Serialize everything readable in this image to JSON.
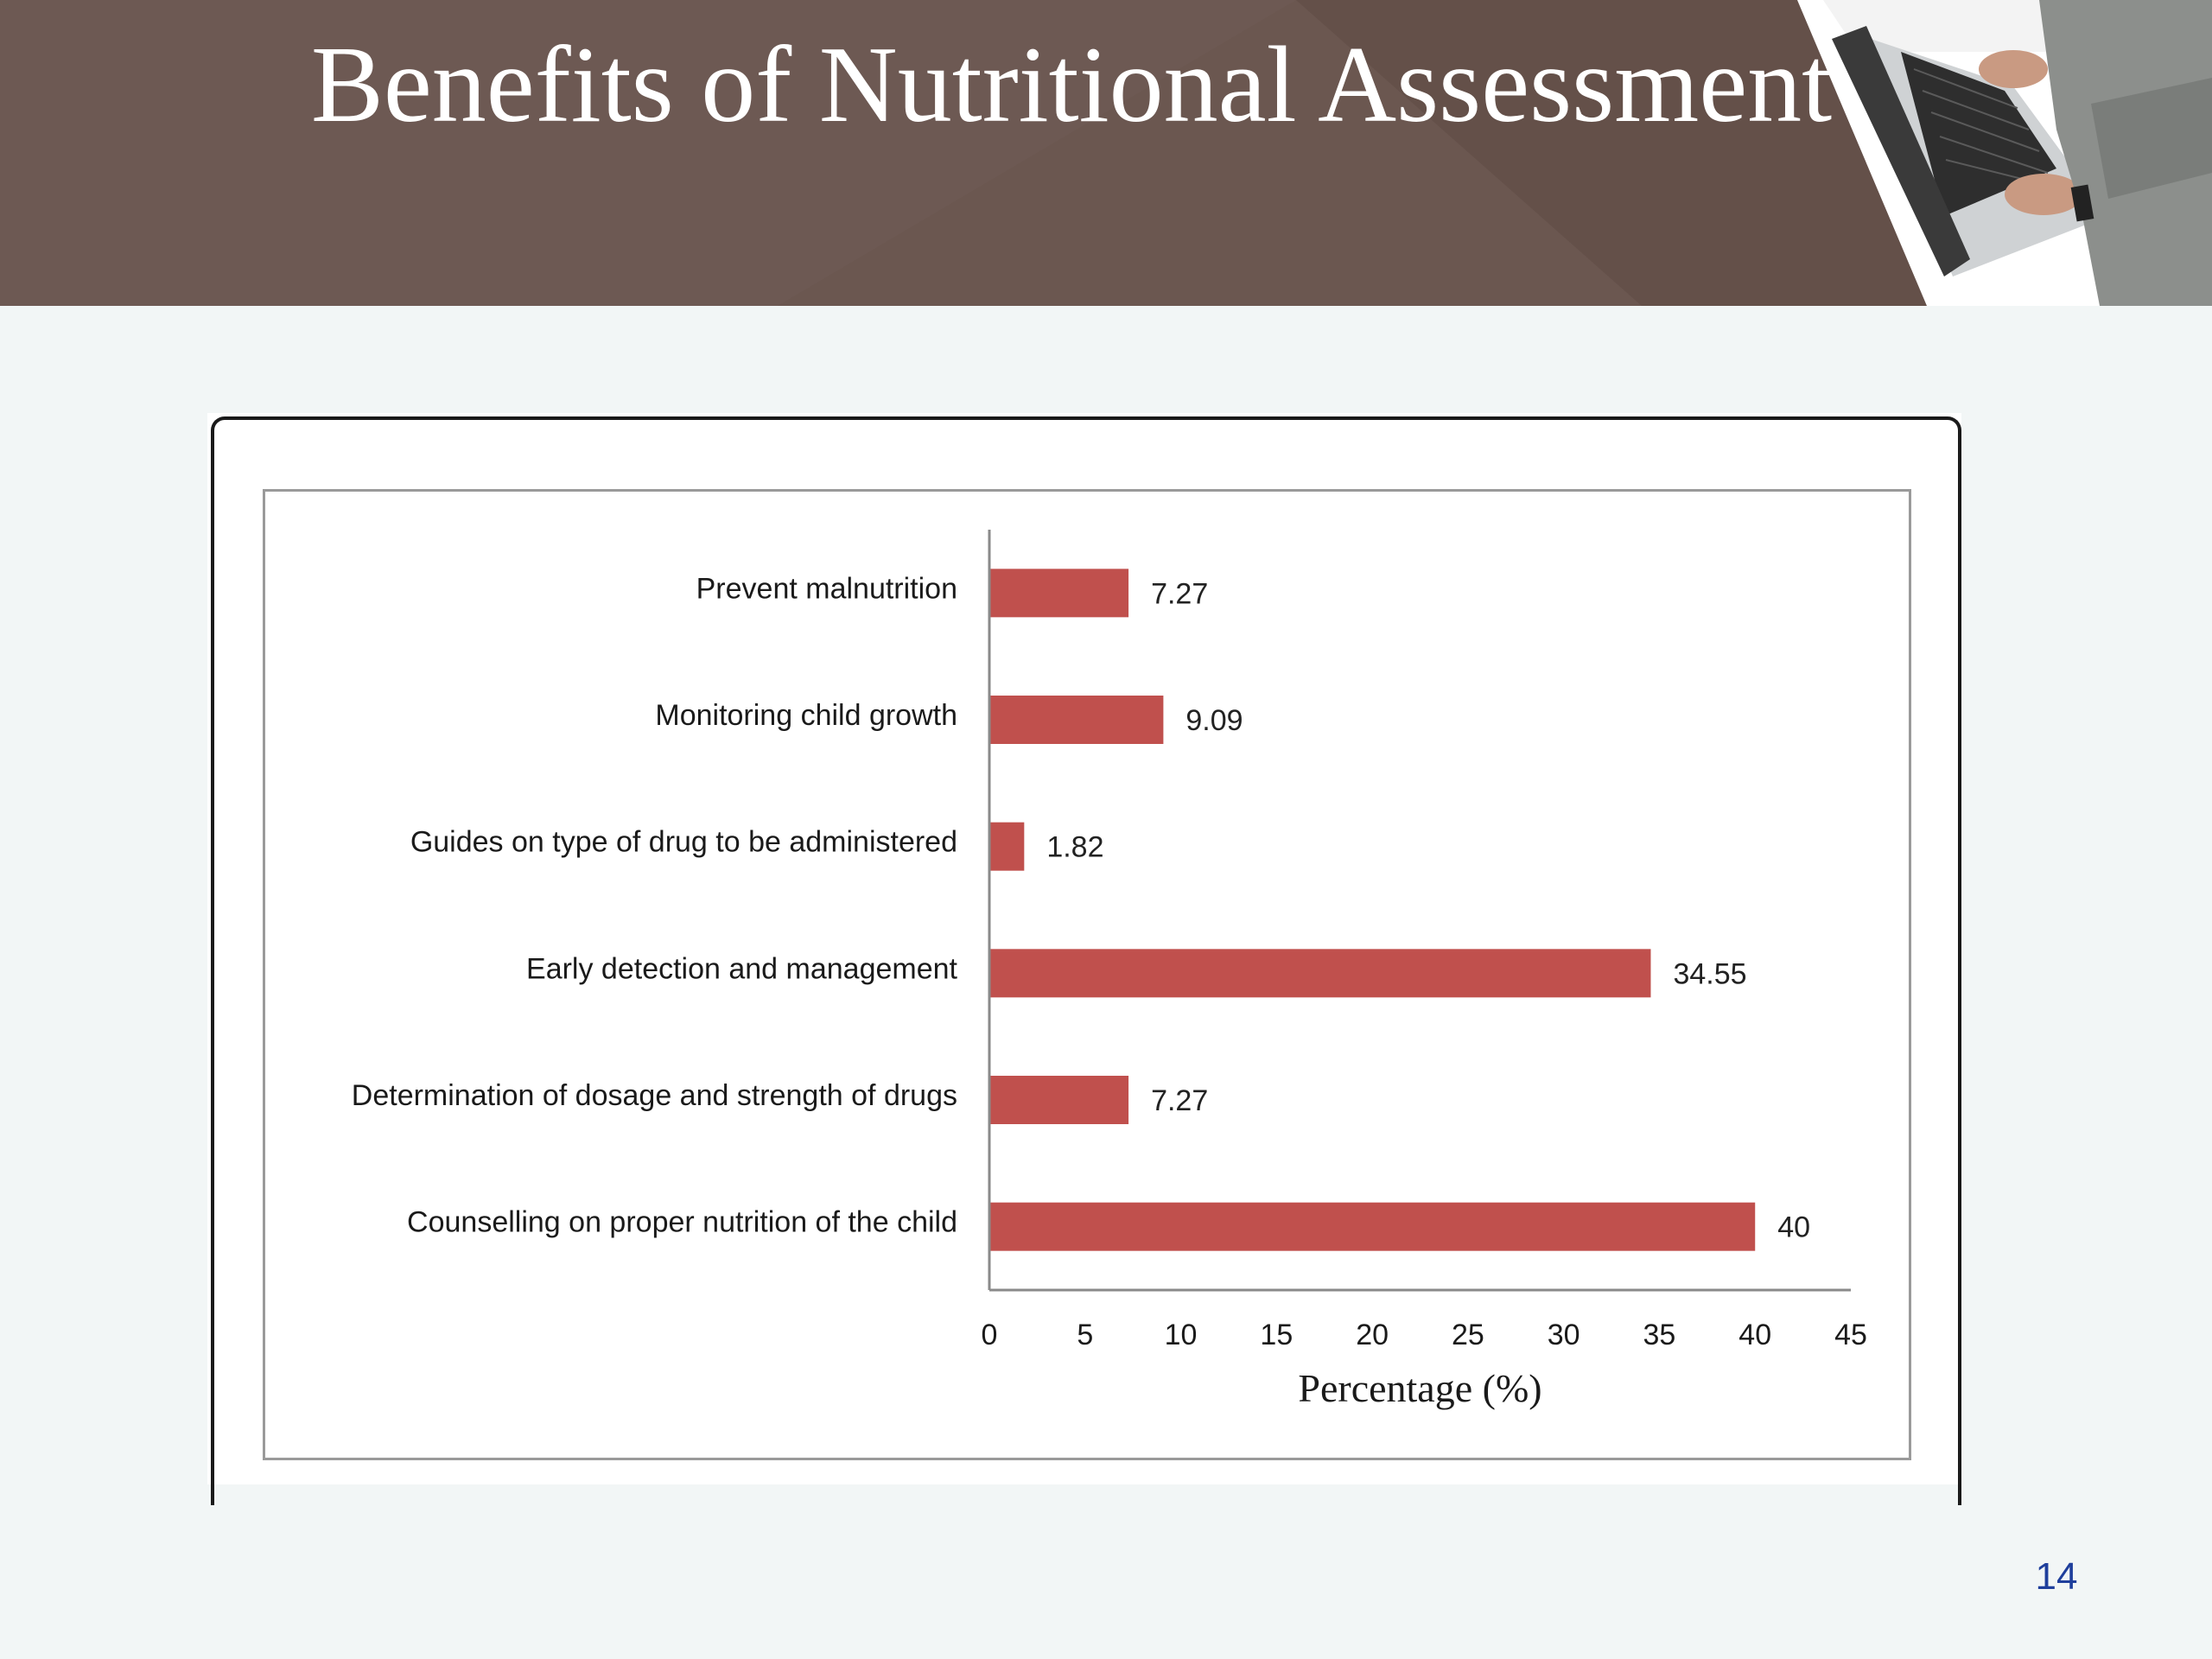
{
  "slide": {
    "title": "Benefits of Nutritional Assessment",
    "page_number": "14",
    "header_color": "#6b5750"
  },
  "chart_data": {
    "type": "bar",
    "orientation": "horizontal",
    "categories": [
      "Prevent malnutrition",
      "Monitoring child growth",
      "Guides on type of drug to be administered",
      "Early detection and management",
      "Determination of dosage and strength of drugs",
      "Counselling on proper nutrition of the child"
    ],
    "values": [
      7.27,
      9.09,
      1.82,
      34.55,
      7.27,
      40
    ],
    "value_labels": [
      "7.27",
      "9.09",
      "1.82",
      "34.55",
      "7.27",
      "40"
    ],
    "xlabel": "Percentage (%)",
    "ylabel": "",
    "xlim": [
      0,
      45
    ],
    "xticks": [
      "0",
      "5",
      "10",
      "15",
      "20",
      "25",
      "30",
      "35",
      "40",
      "45"
    ],
    "bar_color": "#c0504d",
    "grid": false,
    "legend": "none"
  }
}
